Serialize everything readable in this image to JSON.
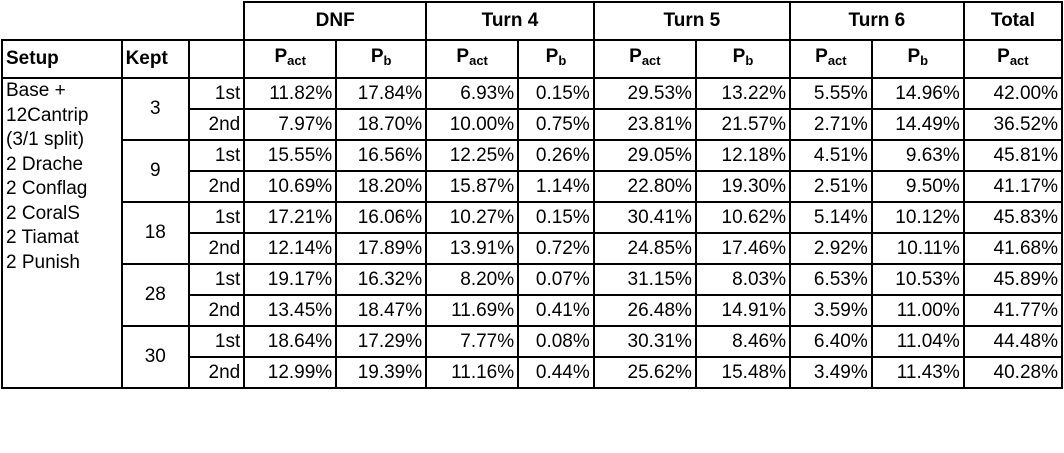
{
  "groups": [
    "DNF",
    "Turn 4",
    "Turn 5",
    "Turn 6",
    "Total"
  ],
  "headers": {
    "setup": "Setup",
    "kept": "Kept"
  },
  "prob": {
    "P": "P",
    "act": "act",
    "b": "b"
  },
  "setup_lines": [
    "Base +",
    "12Cantrip",
    "(3/1 split)",
    "2 Drache",
    "2 Conflag",
    "2 CoralS",
    "2 Tiamat",
    "2 Punish"
  ],
  "rows": [
    {
      "kept": "3",
      "draws": [
        {
          "draw": "1st",
          "values": [
            "11.82%",
            "17.84%",
            "6.93%",
            "0.15%",
            "29.53%",
            "13.22%",
            "5.55%",
            "14.96%",
            "42.00%"
          ]
        },
        {
          "draw": "2nd",
          "values": [
            "7.97%",
            "18.70%",
            "10.00%",
            "0.75%",
            "23.81%",
            "21.57%",
            "2.71%",
            "14.49%",
            "36.52%"
          ]
        }
      ]
    },
    {
      "kept": "9",
      "draws": [
        {
          "draw": "1st",
          "values": [
            "15.55%",
            "16.56%",
            "12.25%",
            "0.26%",
            "29.05%",
            "12.18%",
            "4.51%",
            "9.63%",
            "45.81%"
          ]
        },
        {
          "draw": "2nd",
          "values": [
            "10.69%",
            "18.20%",
            "15.87%",
            "1.14%",
            "22.80%",
            "19.30%",
            "2.51%",
            "9.50%",
            "41.17%"
          ]
        }
      ]
    },
    {
      "kept": "18",
      "draws": [
        {
          "draw": "1st",
          "values": [
            "17.21%",
            "16.06%",
            "10.27%",
            "0.15%",
            "30.41%",
            "10.62%",
            "5.14%",
            "10.12%",
            "45.83%"
          ]
        },
        {
          "draw": "2nd",
          "values": [
            "12.14%",
            "17.89%",
            "13.91%",
            "0.72%",
            "24.85%",
            "17.46%",
            "2.92%",
            "10.11%",
            "41.68%"
          ]
        }
      ]
    },
    {
      "kept": "28",
      "draws": [
        {
          "draw": "1st",
          "values": [
            "19.17%",
            "16.32%",
            "8.20%",
            "0.07%",
            "31.15%",
            "8.03%",
            "6.53%",
            "10.53%",
            "45.89%"
          ]
        },
        {
          "draw": "2nd",
          "values": [
            "13.45%",
            "18.47%",
            "11.69%",
            "0.41%",
            "26.48%",
            "14.91%",
            "3.59%",
            "11.00%",
            "41.77%"
          ]
        }
      ]
    },
    {
      "kept": "30",
      "draws": [
        {
          "draw": "1st",
          "values": [
            "18.64%",
            "17.29%",
            "7.77%",
            "0.08%",
            "30.31%",
            "8.46%",
            "6.40%",
            "11.04%",
            "44.48%"
          ]
        },
        {
          "draw": "2nd",
          "values": [
            "12.99%",
            "19.39%",
            "11.16%",
            "0.44%",
            "25.62%",
            "15.48%",
            "3.49%",
            "11.43%",
            "40.28%"
          ]
        }
      ]
    }
  ]
}
